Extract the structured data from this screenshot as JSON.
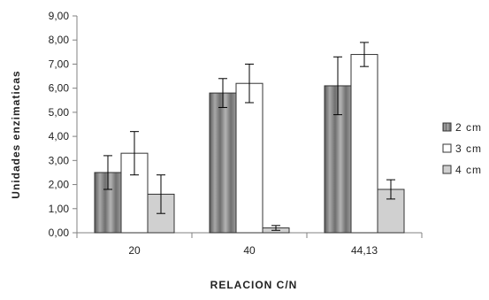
{
  "chart_data": {
    "type": "bar",
    "title": "",
    "xlabel": "RELACION C/N",
    "ylabel": "Unidades enzimaticas",
    "categories": [
      "20",
      "40",
      "44,13"
    ],
    "ylim": [
      0,
      9
    ],
    "ytick_step": 1,
    "ytick_labels": [
      "0,00",
      "1,00",
      "2,00",
      "3,00",
      "4,00",
      "5,00",
      "6,00",
      "7,00",
      "8,00",
      "9,00"
    ],
    "legend_position": "right",
    "grid": false,
    "error_bars": true,
    "series": [
      {
        "name": "2 cm",
        "fill": "gradient-gray-stripes",
        "color": "#8c8c8c",
        "values": [
          2.5,
          5.8,
          6.1
        ],
        "errors": [
          0.7,
          0.6,
          1.2
        ]
      },
      {
        "name": "3 cm",
        "fill": "white",
        "color": "#ffffff",
        "values": [
          3.3,
          6.2,
          7.4
        ],
        "errors": [
          0.9,
          0.8,
          0.5
        ]
      },
      {
        "name": "4 cm",
        "fill": "light-gray",
        "color": "#d0d0d0",
        "values": [
          1.6,
          0.2,
          1.8
        ],
        "errors": [
          0.8,
          0.1,
          0.4
        ]
      }
    ]
  }
}
